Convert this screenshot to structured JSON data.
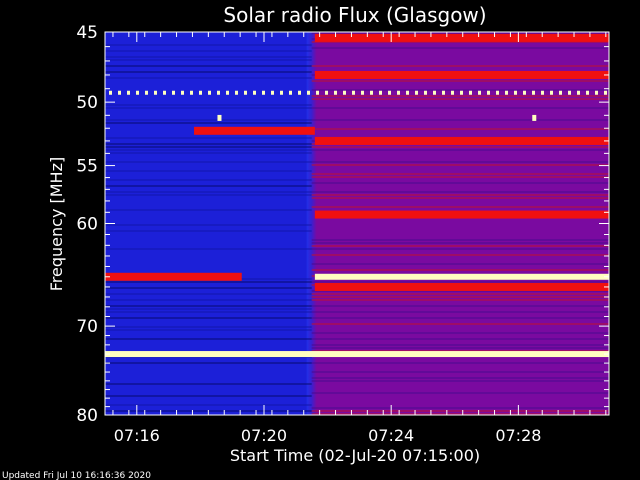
{
  "chart_data": {
    "type": "heatmap",
    "title": "Solar radio Flux (Glasgow)",
    "xlabel": "Start Time (02-Jul-20 07:15:00)",
    "ylabel": "Frequency [MHz]",
    "x_unit": "minutes after 07:15:00",
    "xlim": [
      0,
      15.85
    ],
    "ylim": [
      45,
      80
    ],
    "y_scale": "log",
    "y_inverted": true,
    "xticks": [
      {
        "value": 1,
        "label": "07:16"
      },
      {
        "value": 5,
        "label": "07:20"
      },
      {
        "value": 9,
        "label": "07:24"
      },
      {
        "value": 13,
        "label": "07:28"
      }
    ],
    "yticks": [
      {
        "value": 45,
        "label": "45"
      },
      {
        "value": 50,
        "label": "50"
      },
      {
        "value": 55,
        "label": "55"
      },
      {
        "value": 60,
        "label": "60"
      },
      {
        "value": 70,
        "label": "70"
      },
      {
        "value": 80,
        "label": "80"
      }
    ],
    "colors": {
      "low": "#1c20d8",
      "mid": "#7a0aa0",
      "high": "#f01010",
      "peak": "#ffffc0"
    },
    "regimes": [
      {
        "x_start": 0,
        "x_end": 6.5,
        "level": "low"
      },
      {
        "x_start": 6.5,
        "x_end": 15.85,
        "level": "mid"
      }
    ],
    "transition_x": 6.5,
    "bands": [
      {
        "freq": 45.4,
        "level": "high",
        "x_start": 6.6,
        "x_end": 15.85
      },
      {
        "freq": 48.0,
        "level": "high",
        "x_start": 6.6,
        "x_end": 15.85
      },
      {
        "freq": 49.3,
        "level": "peak",
        "x_start": 0,
        "x_end": 15.85,
        "note": "dotted"
      },
      {
        "freq": 53.0,
        "level": "high",
        "x_start": 6.6,
        "x_end": 15.85
      },
      {
        "freq": 52.2,
        "level": "high",
        "x_start": 2.8,
        "x_end": 6.6
      },
      {
        "freq": 59.2,
        "level": "high",
        "x_start": 6.6,
        "x_end": 15.85
      },
      {
        "freq": 65.0,
        "level": "high",
        "x_start": 0,
        "x_end": 4.3
      },
      {
        "freq": 65.0,
        "level": "peak",
        "x_start": 6.6,
        "x_end": 15.85
      },
      {
        "freq": 66.0,
        "level": "high",
        "x_start": 6.6,
        "x_end": 15.85
      },
      {
        "freq": 73.0,
        "level": "peak",
        "x_start": 0,
        "x_end": 15.85
      }
    ],
    "spots": [
      {
        "x": 3.6,
        "freq": 51.2,
        "level": "peak"
      },
      {
        "x": 13.5,
        "freq": 51.2,
        "level": "peak"
      }
    ]
  },
  "footer": {
    "updated": "Updated Fri Jul 10 16:16:36 2020"
  }
}
